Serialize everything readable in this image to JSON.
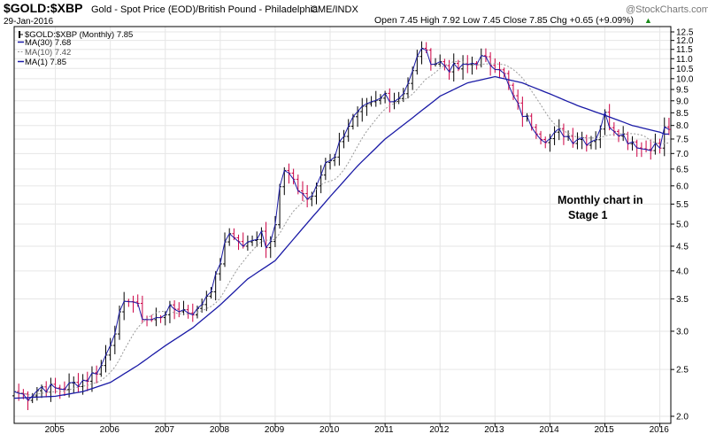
{
  "header": {
    "symbol": "$GOLD:$XBP",
    "description": "Gold - Spot Price (EOD)/British Pound - Philadelphia",
    "exchange": "CME/INDX",
    "date": "29-Jan-2016",
    "ohlc_text": "Open 7.45  High 7.92  Low 7.45  Close 7.85  Chg +0.65 (+9.09%)",
    "up_arrow": "▲",
    "credit": "@StockCharts.com"
  },
  "legend": [
    {
      "label": "$GOLD:$XBP (Monthly) 7.85",
      "color": "#000000",
      "style": "bar"
    },
    {
      "label": "MA(30) 7.68",
      "color": "#1a1aa6",
      "style": "solid"
    },
    {
      "label": "MA(10) 7.42",
      "color": "#999999",
      "style": "dotted"
    },
    {
      "label": "MA(1) 7.85",
      "color": "#1a1aa6",
      "style": "solid"
    }
  ],
  "annotation": {
    "line1": "Monthly chart in",
    "line2": "Stage 1"
  },
  "colors": {
    "up": "#000000",
    "down": "#cc0044",
    "ma30": "#1a1aa6",
    "ma10": "#999999",
    "ma1": "#1a1aa6",
    "grid": "#e6e6e6",
    "axis": "#000000"
  },
  "chart_data": {
    "type": "line",
    "title": "$GOLD:$XBP Gold - Spot Price (EOD)/British Pound - Philadelphia",
    "frequency": "monthly",
    "y_scale": "log",
    "ylim": [
      2.0,
      12.5
    ],
    "y_ticks": [
      2.0,
      2.5,
      3.0,
      3.5,
      4.0,
      4.5,
      5.0,
      5.5,
      6.0,
      6.5,
      7.0,
      7.5,
      8.0,
      8.5,
      9.0,
      9.5,
      10.0,
      10.5,
      11.0,
      11.5,
      12.0,
      12.5
    ],
    "y_tick_labels": [
      "2.0",
      "2.5",
      "3.0",
      "3.5",
      "4.0",
      "4.5",
      "5.0",
      "5.5",
      "6.0",
      "6.5",
      "7.0",
      "7.5",
      "8.0",
      "8.5",
      "9.0",
      "9.5",
      "10.0",
      "10.5",
      "11.0",
      "11.5",
      "12.0",
      "12.5"
    ],
    "xlim": [
      2004.25,
      2016.2
    ],
    "x_ticks": [
      2005,
      2006,
      2007,
      2008,
      2009,
      2010,
      2011,
      2012,
      2013,
      2014,
      2015,
      2016
    ],
    "x_tick_labels": [
      "2005",
      "2006",
      "2007",
      "2008",
      "2009",
      "2010",
      "2011",
      "2012",
      "2013",
      "2014",
      "2015",
      "2016"
    ],
    "price_anchors": {
      "x": [
        2004.25,
        2004.5,
        2004.75,
        2005.0,
        2005.2,
        2005.4,
        2005.6,
        2005.85,
        2006.0,
        2006.2,
        2006.35,
        2006.5,
        2006.6,
        2006.8,
        2007.0,
        2007.2,
        2007.4,
        2007.6,
        2007.7,
        2007.9,
        2008.05,
        2008.2,
        2008.3,
        2008.45,
        2008.6,
        2008.75,
        2008.85,
        2009.0,
        2009.1,
        2009.2,
        2009.35,
        2009.5,
        2009.6,
        2009.75,
        2009.9,
        2010.1,
        2010.3,
        2010.45,
        2010.6,
        2010.75,
        2010.9,
        2011.0,
        2011.2,
        2011.35,
        2011.45,
        2011.55,
        2011.65,
        2011.75,
        2011.9,
        2012.0,
        2012.2,
        2012.4,
        2012.6,
        2012.75,
        2012.9,
        2013.1,
        2013.25,
        2013.4,
        2013.55,
        2013.7,
        2013.85,
        2014.0,
        2014.2,
        2014.4,
        2014.55,
        2014.7,
        2014.85,
        2015.0,
        2015.1,
        2015.25,
        2015.4,
        2015.55,
        2015.7,
        2015.85,
        2016.0,
        2016.08
      ],
      "close": [
        2.25,
        2.2,
        2.3,
        2.28,
        2.3,
        2.35,
        2.4,
        2.55,
        2.85,
        3.3,
        3.55,
        3.35,
        3.2,
        3.15,
        3.3,
        3.35,
        3.3,
        3.3,
        3.5,
        3.8,
        4.4,
        4.9,
        4.6,
        4.5,
        4.6,
        4.9,
        4.4,
        5.1,
        6.2,
        6.5,
        6.0,
        5.8,
        5.6,
        5.9,
        6.7,
        7.0,
        8.0,
        8.3,
        8.6,
        8.8,
        9.0,
        9.3,
        9.0,
        9.5,
        10.0,
        10.6,
        11.8,
        11.2,
        10.8,
        10.8,
        10.5,
        10.5,
        10.8,
        11.0,
        10.8,
        10.6,
        9.6,
        8.8,
        8.3,
        8.0,
        7.6,
        7.5,
        7.8,
        7.5,
        7.6,
        7.4,
        7.6,
        8.4,
        8.0,
        7.8,
        7.5,
        7.4,
        7.1,
        7.3,
        7.2,
        7.85
      ]
    },
    "series": [
      {
        "name": "$GOLD:$XBP (Monthly)",
        "last": 7.85,
        "style": "ohlc-bars"
      },
      {
        "name": "MA(30)",
        "last": 7.68,
        "style": "solid",
        "x": [
          2004.25,
          2005.0,
          2005.5,
          2006.0,
          2006.5,
          2007.0,
          2007.5,
          2008.0,
          2008.5,
          2009.0,
          2009.5,
          2010.0,
          2010.5,
          2011.0,
          2011.5,
          2012.0,
          2012.5,
          2013.0,
          2013.5,
          2014.0,
          2014.5,
          2015.0,
          2015.5,
          2016.0,
          2016.08
        ],
        "values": [
          2.18,
          2.2,
          2.25,
          2.35,
          2.55,
          2.8,
          3.05,
          3.4,
          3.85,
          4.2,
          4.9,
          5.7,
          6.6,
          7.5,
          8.3,
          9.2,
          9.8,
          10.1,
          9.8,
          9.3,
          8.8,
          8.4,
          8.0,
          7.75,
          7.68
        ]
      },
      {
        "name": "MA(10)",
        "last": 7.42,
        "style": "dotted"
      },
      {
        "name": "MA(1)",
        "last": 7.85,
        "style": "solid"
      }
    ],
    "annotations": [
      "Monthly chart in",
      "Stage 1"
    ]
  }
}
